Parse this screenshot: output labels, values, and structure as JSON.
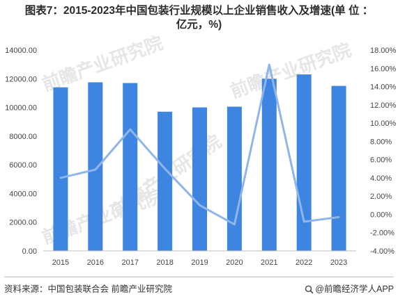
{
  "title_line1": "图表7：2015-2023年中国包装行业规模以上企业销售收入及增速(单 位 ：",
  "title_line2": "亿元，%)",
  "watermark_text": "前瞻产业研究院",
  "footer": {
    "source": "资料来源：中国包装联合会 前瞻产业研究院",
    "brand": "@前瞻经济学人APP",
    "brand_icon": "magnifier-icon"
  },
  "colors": {
    "bar": "#3d85e0",
    "line": "#8fb5ea"
  },
  "chart_data": {
    "type": "bar",
    "categories": [
      "2015",
      "2016",
      "2017",
      "2018",
      "2019",
      "2020",
      "2021",
      "2022",
      "2023"
    ],
    "series": [
      {
        "type": "bar",
        "axis": "left",
        "values": [
          11400,
          11750,
          11700,
          9700,
          10000,
          10050,
          12000,
          12300,
          11500
        ]
      },
      {
        "type": "line",
        "axis": "right",
        "values": [
          4.0,
          4.9,
          9.3,
          5.0,
          1.0,
          -1.1,
          16.4,
          -0.8,
          -0.3
        ]
      }
    ],
    "y_left": {
      "min": 0,
      "max": 14000,
      "step": 2000,
      "decimals": 2,
      "tick_labels": [
        "0.00",
        "2000.00",
        "4000.00",
        "6000.00",
        "8000.00",
        "10000.00",
        "12000.00",
        "14000.00"
      ]
    },
    "y_right": {
      "min": -4,
      "max": 18,
      "step": 2,
      "suffix": "%",
      "tick_labels": [
        "-4.00%",
        "-2.00%",
        "0.00%",
        "2.00%",
        "4.00%",
        "6.00%",
        "8.00%",
        "10.00%",
        "12.00%",
        "14.00%",
        "16.00%",
        "18.00%"
      ]
    },
    "grid": false,
    "legend": "none"
  }
}
